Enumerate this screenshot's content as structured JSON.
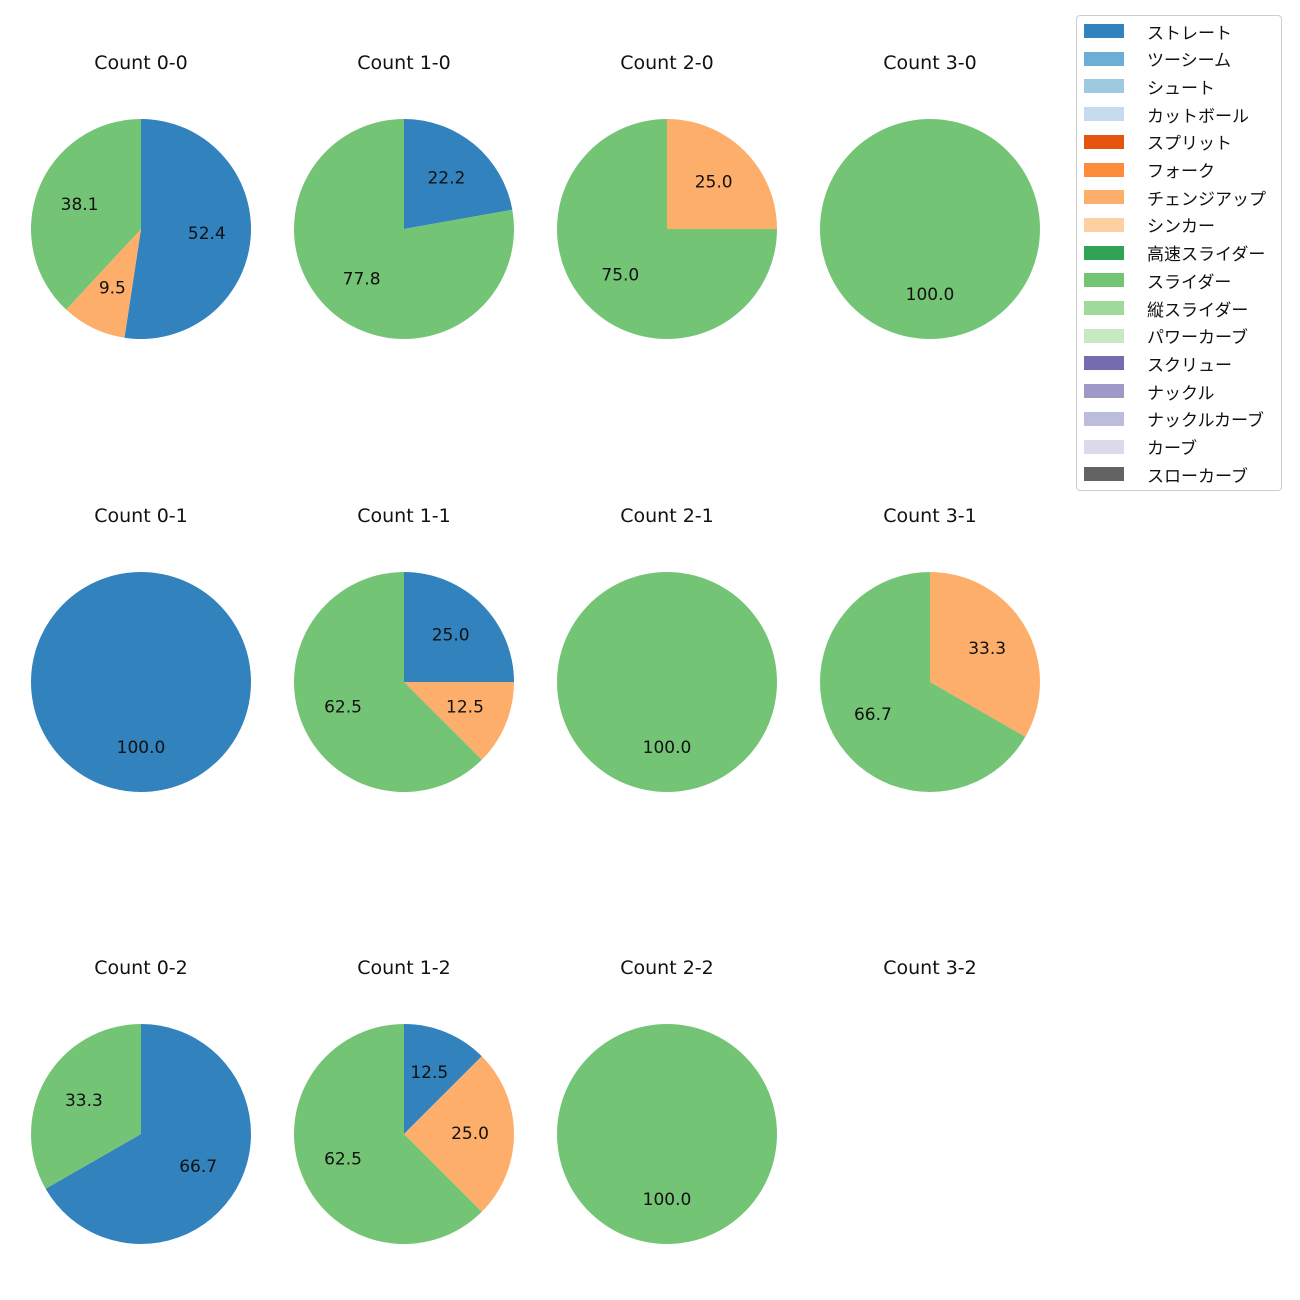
{
  "chart_data": {
    "type": "pie",
    "pitch_types": [
      {
        "name": "ストレート",
        "color": "#3182bd"
      },
      {
        "name": "ツーシーム",
        "color": "#6baed6"
      },
      {
        "name": "シュート",
        "color": "#9ecae1"
      },
      {
        "name": "カットボール",
        "color": "#c6dbef"
      },
      {
        "name": "スプリット",
        "color": "#e6550d"
      },
      {
        "name": "フォーク",
        "color": "#fd8d3c"
      },
      {
        "name": "チェンジアップ",
        "color": "#fdae6b"
      },
      {
        "name": "シンカー",
        "color": "#fdd0a2"
      },
      {
        "name": "高速スライダー",
        "color": "#31a354"
      },
      {
        "name": "スライダー",
        "color": "#74c476"
      },
      {
        "name": "縦スライダー",
        "color": "#a1d99b"
      },
      {
        "name": "パワーカーブ",
        "color": "#c7e9c0"
      },
      {
        "name": "スクリュー",
        "color": "#756bb1"
      },
      {
        "name": "ナックル",
        "color": "#9e9ac8"
      },
      {
        "name": "ナックルカーブ",
        "color": "#bcbddc"
      },
      {
        "name": "カーブ",
        "color": "#dadaeb"
      },
      {
        "name": "スローカーブ",
        "color": "#636363"
      }
    ],
    "charts": [
      {
        "title": "Count 0-0",
        "slices": [
          {
            "pitch": "ストレート",
            "value": 52.4
          },
          {
            "pitch": "チェンジアップ",
            "value": 9.5
          },
          {
            "pitch": "スライダー",
            "value": 38.1
          }
        ]
      },
      {
        "title": "Count 1-0",
        "slices": [
          {
            "pitch": "ストレート",
            "value": 22.2
          },
          {
            "pitch": "スライダー",
            "value": 77.8
          }
        ]
      },
      {
        "title": "Count 2-0",
        "slices": [
          {
            "pitch": "チェンジアップ",
            "value": 25.0
          },
          {
            "pitch": "スライダー",
            "value": 75.0
          }
        ]
      },
      {
        "title": "Count 3-0",
        "slices": [
          {
            "pitch": "スライダー",
            "value": 100.0
          }
        ]
      },
      {
        "title": "Count 0-1",
        "slices": [
          {
            "pitch": "ストレート",
            "value": 100.0
          }
        ]
      },
      {
        "title": "Count 1-1",
        "slices": [
          {
            "pitch": "ストレート",
            "value": 25.0
          },
          {
            "pitch": "チェンジアップ",
            "value": 12.5
          },
          {
            "pitch": "スライダー",
            "value": 62.5
          }
        ]
      },
      {
        "title": "Count 2-1",
        "slices": [
          {
            "pitch": "スライダー",
            "value": 100.0
          }
        ]
      },
      {
        "title": "Count 3-1",
        "slices": [
          {
            "pitch": "チェンジアップ",
            "value": 33.3
          },
          {
            "pitch": "スライダー",
            "value": 66.7
          }
        ]
      },
      {
        "title": "Count 0-2",
        "slices": [
          {
            "pitch": "ストレート",
            "value": 66.7
          },
          {
            "pitch": "スライダー",
            "value": 33.3
          }
        ]
      },
      {
        "title": "Count 1-2",
        "slices": [
          {
            "pitch": "ストレート",
            "value": 12.5
          },
          {
            "pitch": "チェンジアップ",
            "value": 25.0
          },
          {
            "pitch": "スライダー",
            "value": 62.5
          }
        ]
      },
      {
        "title": "Count 2-2",
        "slices": [
          {
            "pitch": "スライダー",
            "value": 100.0
          }
        ]
      },
      {
        "title": "Count 3-2",
        "slices": []
      }
    ],
    "start_angle": "top",
    "direction": "clockwise",
    "legend_position": "top-right"
  }
}
